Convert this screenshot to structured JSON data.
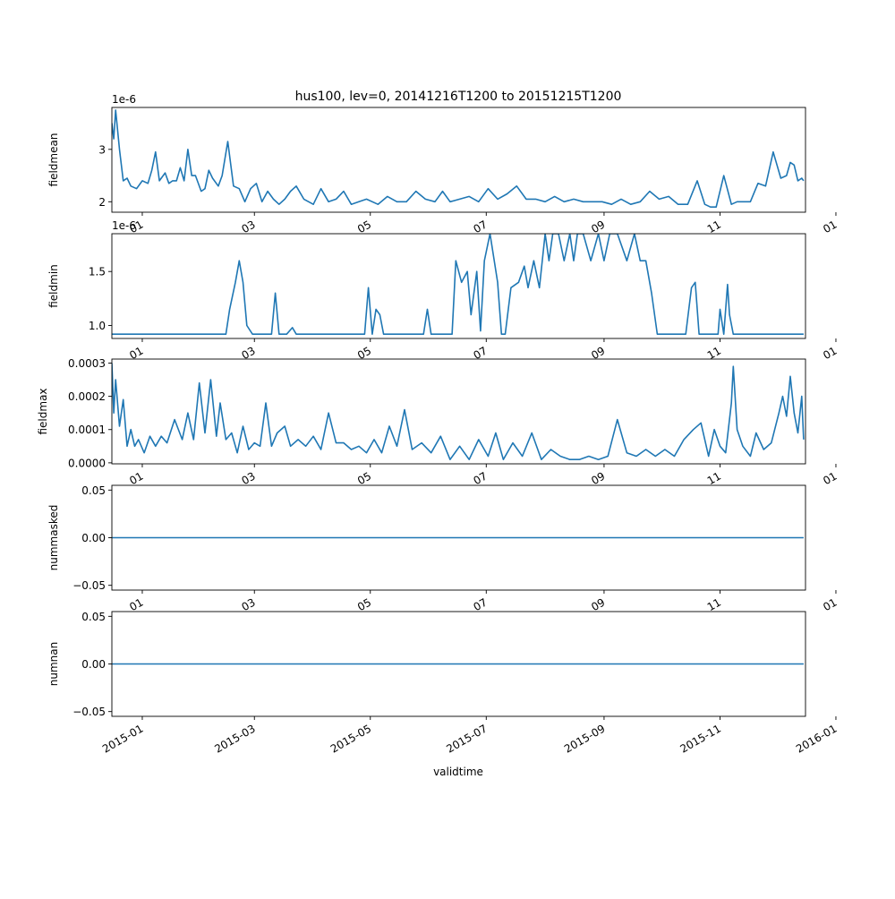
{
  "title": "hus100, lev=0, 20141216T1200 to 20151215T1200",
  "xlabel": "validtime",
  "line_color": "#1f77b4",
  "x_tick_labels": [
    "2015-01",
    "2015-03",
    "2015-05",
    "2015-07",
    "2015-09",
    "2015-11",
    "2016-01"
  ],
  "x_tick_dates": [
    "2015-01-01",
    "2015-03-01",
    "2015-05-01",
    "2015-07-01",
    "2015-09-01",
    "2015-11-01",
    "2016-01-01"
  ],
  "x_tick_labels_clipped": [
    "01",
    "03",
    "05",
    "07",
    "09",
    "11",
    "01"
  ],
  "chart_data": [
    {
      "type": "line",
      "ylabel": "fieldmean",
      "offset_text": "1e-6",
      "xlim": [
        "2014-12-16",
        "2015-12-16"
      ],
      "ylim": [
        1.8,
        3.8
      ],
      "yticks": [
        2,
        3
      ],
      "ytick_labels": [
        "2",
        "3"
      ],
      "x": [
        "2014-12-16",
        "2014-12-17",
        "2014-12-18",
        "2014-12-20",
        "2014-12-22",
        "2014-12-24",
        "2014-12-26",
        "2014-12-29",
        "2015-01-01",
        "2015-01-04",
        "2015-01-06",
        "2015-01-08",
        "2015-01-10",
        "2015-01-13",
        "2015-01-15",
        "2015-01-17",
        "2015-01-19",
        "2015-01-21",
        "2015-01-23",
        "2015-01-25",
        "2015-01-27",
        "2015-01-29",
        "2015-02-01",
        "2015-02-03",
        "2015-02-05",
        "2015-02-07",
        "2015-02-10",
        "2015-02-12",
        "2015-02-15",
        "2015-02-18",
        "2015-02-21",
        "2015-02-24",
        "2015-02-27",
        "2015-03-02",
        "2015-03-05",
        "2015-03-08",
        "2015-03-11",
        "2015-03-14",
        "2015-03-17",
        "2015-03-20",
        "2015-03-23",
        "2015-03-27",
        "2015-04-01",
        "2015-04-05",
        "2015-04-09",
        "2015-04-13",
        "2015-04-17",
        "2015-04-21",
        "2015-04-25",
        "2015-04-29",
        "2015-05-05",
        "2015-05-10",
        "2015-05-15",
        "2015-05-20",
        "2015-05-25",
        "2015-05-30",
        "2015-06-04",
        "2015-06-08",
        "2015-06-12",
        "2015-06-17",
        "2015-06-22",
        "2015-06-27",
        "2015-07-02",
        "2015-07-07",
        "2015-07-12",
        "2015-07-17",
        "2015-07-22",
        "2015-07-27",
        "2015-08-01",
        "2015-08-06",
        "2015-08-11",
        "2015-08-16",
        "2015-08-21",
        "2015-08-26",
        "2015-08-31",
        "2015-09-05",
        "2015-09-10",
        "2015-09-15",
        "2015-09-20",
        "2015-09-25",
        "2015-09-30",
        "2015-10-05",
        "2015-10-10",
        "2015-10-15",
        "2015-10-20",
        "2015-10-24",
        "2015-10-27",
        "2015-10-30",
        "2015-11-03",
        "2015-11-07",
        "2015-11-10",
        "2015-11-13",
        "2015-11-17",
        "2015-11-21",
        "2015-11-25",
        "2015-11-29",
        "2015-12-03",
        "2015-12-06",
        "2015-12-08",
        "2015-12-10",
        "2015-12-12",
        "2015-12-14",
        "2015-12-15"
      ],
      "values": [
        3.5,
        3.2,
        3.75,
        3.0,
        2.4,
        2.45,
        2.3,
        2.25,
        2.4,
        2.35,
        2.6,
        2.95,
        2.4,
        2.55,
        2.35,
        2.4,
        2.4,
        2.65,
        2.4,
        3.0,
        2.5,
        2.5,
        2.2,
        2.25,
        2.6,
        2.45,
        2.3,
        2.5,
        3.15,
        2.3,
        2.25,
        2.0,
        2.25,
        2.35,
        2.0,
        2.2,
        2.05,
        1.95,
        2.05,
        2.2,
        2.3,
        2.05,
        1.95,
        2.25,
        2.0,
        2.05,
        2.2,
        1.95,
        2.0,
        2.05,
        1.95,
        2.1,
        2.0,
        2.0,
        2.2,
        2.05,
        2.0,
        2.2,
        2.0,
        2.05,
        2.1,
        2.0,
        2.25,
        2.05,
        2.15,
        2.3,
        2.05,
        2.05,
        2.0,
        2.1,
        2.0,
        2.05,
        2.0,
        2.0,
        2.0,
        1.95,
        2.05,
        1.95,
        2.0,
        2.2,
        2.05,
        2.1,
        1.95,
        1.95,
        2.4,
        1.95,
        1.9,
        1.9,
        2.5,
        1.95,
        2.0,
        2.0,
        2.0,
        2.35,
        2.3,
        2.95,
        2.45,
        2.5,
        2.75,
        2.7,
        2.4,
        2.45,
        2.4
      ]
    },
    {
      "type": "line",
      "ylabel": "fieldmin",
      "offset_text": "1e-6",
      "xlim": [
        "2014-12-16",
        "2015-12-16"
      ],
      "ylim": [
        0.88,
        1.85
      ],
      "yticks": [
        1.0,
        1.5
      ],
      "ytick_labels": [
        "1.0",
        "1.5"
      ],
      "x": [
        "2014-12-16",
        "2015-02-14",
        "2015-02-16",
        "2015-02-19",
        "2015-02-21",
        "2015-02-23",
        "2015-02-25",
        "2015-02-28",
        "2015-03-02",
        "2015-03-10",
        "2015-03-12",
        "2015-03-14",
        "2015-03-18",
        "2015-03-21",
        "2015-03-23",
        "2015-04-28",
        "2015-04-30",
        "2015-05-02",
        "2015-05-04",
        "2015-05-06",
        "2015-05-08",
        "2015-05-29",
        "2015-05-31",
        "2015-06-02",
        "2015-06-13",
        "2015-06-15",
        "2015-06-18",
        "2015-06-21",
        "2015-06-23",
        "2015-06-26",
        "2015-06-28",
        "2015-06-30",
        "2015-07-03",
        "2015-07-07",
        "2015-07-09",
        "2015-07-11",
        "2015-07-14",
        "2015-07-18",
        "2015-07-21",
        "2015-07-23",
        "2015-07-26",
        "2015-07-29",
        "2015-08-01",
        "2015-08-03",
        "2015-08-05",
        "2015-08-08",
        "2015-08-11",
        "2015-08-14",
        "2015-08-16",
        "2015-08-18",
        "2015-08-21",
        "2015-08-25",
        "2015-08-29",
        "2015-09-01",
        "2015-09-04",
        "2015-09-08",
        "2015-09-13",
        "2015-09-17",
        "2015-09-20",
        "2015-09-23",
        "2015-09-26",
        "2015-09-29",
        "2015-10-02",
        "2015-10-04",
        "2015-10-06",
        "2015-10-14",
        "2015-10-17",
        "2015-10-19",
        "2015-10-21",
        "2015-10-25",
        "2015-10-31",
        "2015-11-01",
        "2015-11-03",
        "2015-11-05",
        "2015-11-06",
        "2015-11-08",
        "2015-12-15"
      ],
      "values": [
        0.92,
        0.92,
        1.15,
        1.4,
        1.6,
        1.4,
        1.0,
        0.92,
        0.92,
        0.92,
        1.3,
        0.92,
        0.92,
        0.98,
        0.92,
        0.92,
        1.35,
        0.92,
        1.15,
        1.1,
        0.92,
        0.92,
        1.15,
        0.92,
        0.92,
        1.6,
        1.4,
        1.5,
        1.1,
        1.5,
        0.95,
        1.6,
        1.85,
        1.4,
        0.92,
        0.92,
        1.35,
        1.4,
        1.55,
        1.35,
        1.6,
        1.35,
        1.85,
        1.6,
        1.85,
        1.85,
        1.6,
        1.85,
        1.6,
        1.85,
        1.85,
        1.6,
        1.85,
        1.6,
        1.85,
        1.85,
        1.6,
        1.85,
        1.6,
        1.6,
        1.3,
        0.92,
        0.92,
        0.92,
        0.92,
        0.92,
        1.35,
        1.4,
        0.92,
        0.92,
        0.92,
        1.15,
        0.92,
        1.38,
        1.1,
        0.92,
        0.92
      ]
    },
    {
      "type": "line",
      "ylabel": "fieldmax",
      "xlim": [
        "2014-12-16",
        "2015-12-16"
      ],
      "ylim": [
        -3e-06,
        0.000312
      ],
      "yticks": [
        0.0,
        0.0001,
        0.0002,
        0.0003
      ],
      "ytick_labels": [
        "0.0000",
        "0.0001",
        "0.0002",
        "0.0003"
      ],
      "x": [
        "2014-12-16",
        "2014-12-17",
        "2014-12-18",
        "2014-12-20",
        "2014-12-22",
        "2014-12-24",
        "2014-12-26",
        "2014-12-28",
        "2014-12-30",
        "2015-01-02",
        "2015-01-05",
        "2015-01-08",
        "2015-01-11",
        "2015-01-14",
        "2015-01-18",
        "2015-01-22",
        "2015-01-25",
        "2015-01-28",
        "2015-01-31",
        "2015-02-03",
        "2015-02-06",
        "2015-02-09",
        "2015-02-11",
        "2015-02-14",
        "2015-02-17",
        "2015-02-20",
        "2015-02-23",
        "2015-02-26",
        "2015-03-01",
        "2015-03-04",
        "2015-03-07",
        "2015-03-10",
        "2015-03-13",
        "2015-03-17",
        "2015-03-20",
        "2015-03-24",
        "2015-03-28",
        "2015-04-01",
        "2015-04-05",
        "2015-04-09",
        "2015-04-13",
        "2015-04-17",
        "2015-04-21",
        "2015-04-25",
        "2015-04-29",
        "2015-05-03",
        "2015-05-07",
        "2015-05-11",
        "2015-05-15",
        "2015-05-19",
        "2015-05-23",
        "2015-05-28",
        "2015-06-02",
        "2015-06-07",
        "2015-06-12",
        "2015-06-17",
        "2015-06-22",
        "2015-06-27",
        "2015-07-02",
        "2015-07-06",
        "2015-07-10",
        "2015-07-15",
        "2015-07-20",
        "2015-07-25",
        "2015-07-30",
        "2015-08-04",
        "2015-08-09",
        "2015-08-14",
        "2015-08-19",
        "2015-08-24",
        "2015-08-29",
        "2015-09-03",
        "2015-09-08",
        "2015-09-13",
        "2015-09-18",
        "2015-09-23",
        "2015-09-28",
        "2015-10-03",
        "2015-10-08",
        "2015-10-13",
        "2015-10-18",
        "2015-10-22",
        "2015-10-26",
        "2015-10-29",
        "2015-11-01",
        "2015-11-04",
        "2015-11-07",
        "2015-11-08",
        "2015-11-10",
        "2015-11-13",
        "2015-11-17",
        "2015-11-20",
        "2015-11-24",
        "2015-11-28",
        "2015-12-02",
        "2015-12-04",
        "2015-12-06",
        "2015-12-08",
        "2015-12-10",
        "2015-12-12",
        "2015-12-14",
        "2015-12-15"
      ],
      "values": [
        0.0003,
        0.00015,
        0.00025,
        0.00011,
        0.00019,
        5e-05,
        0.0001,
        5e-05,
        7e-05,
        3e-05,
        8e-05,
        5e-05,
        8e-05,
        6e-05,
        0.00013,
        7e-05,
        0.00015,
        7e-05,
        0.00024,
        9e-05,
        0.00025,
        8e-05,
        0.00018,
        7e-05,
        9e-05,
        3e-05,
        0.00011,
        4e-05,
        6e-05,
        5e-05,
        0.00018,
        5e-05,
        9e-05,
        0.00011,
        5e-05,
        7e-05,
        5e-05,
        8e-05,
        4e-05,
        0.00015,
        6e-05,
        6e-05,
        4e-05,
        5e-05,
        3e-05,
        7e-05,
        3e-05,
        0.00011,
        5e-05,
        0.00016,
        4e-05,
        6e-05,
        3e-05,
        8e-05,
        1e-05,
        5e-05,
        1e-05,
        7e-05,
        2e-05,
        9e-05,
        1e-05,
        6e-05,
        2e-05,
        9e-05,
        1e-05,
        4e-05,
        2e-05,
        1e-05,
        1e-05,
        2e-05,
        1e-05,
        2e-05,
        0.00013,
        3e-05,
        2e-05,
        4e-05,
        2e-05,
        4e-05,
        2e-05,
        7e-05,
        0.0001,
        0.00012,
        2e-05,
        0.0001,
        5e-05,
        3e-05,
        0.00018,
        0.00029,
        0.0001,
        5e-05,
        2e-05,
        9e-05,
        4e-05,
        6e-05,
        0.00015,
        0.0002,
        0.00014,
        0.00026,
        0.00015,
        9e-05,
        0.0002,
        7e-05
      ]
    },
    {
      "type": "line",
      "ylabel": "nummasked",
      "xlim": [
        "2014-12-16",
        "2015-12-16"
      ],
      "ylim": [
        -0.055,
        0.055
      ],
      "yticks": [
        -0.05,
        0.0,
        0.05
      ],
      "ytick_labels": [
        "−0.05",
        "0.00",
        "0.05"
      ],
      "x": [
        "2014-12-16",
        "2015-12-15"
      ],
      "values": [
        0,
        0
      ]
    },
    {
      "type": "line",
      "ylabel": "numnan",
      "xlim": [
        "2014-12-16",
        "2015-12-16"
      ],
      "ylim": [
        -0.055,
        0.055
      ],
      "yticks": [
        -0.05,
        0.0,
        0.05
      ],
      "ytick_labels": [
        "−0.05",
        "0.00",
        "0.05"
      ],
      "x": [
        "2014-12-16",
        "2015-12-15"
      ],
      "values": [
        0,
        0
      ]
    }
  ]
}
